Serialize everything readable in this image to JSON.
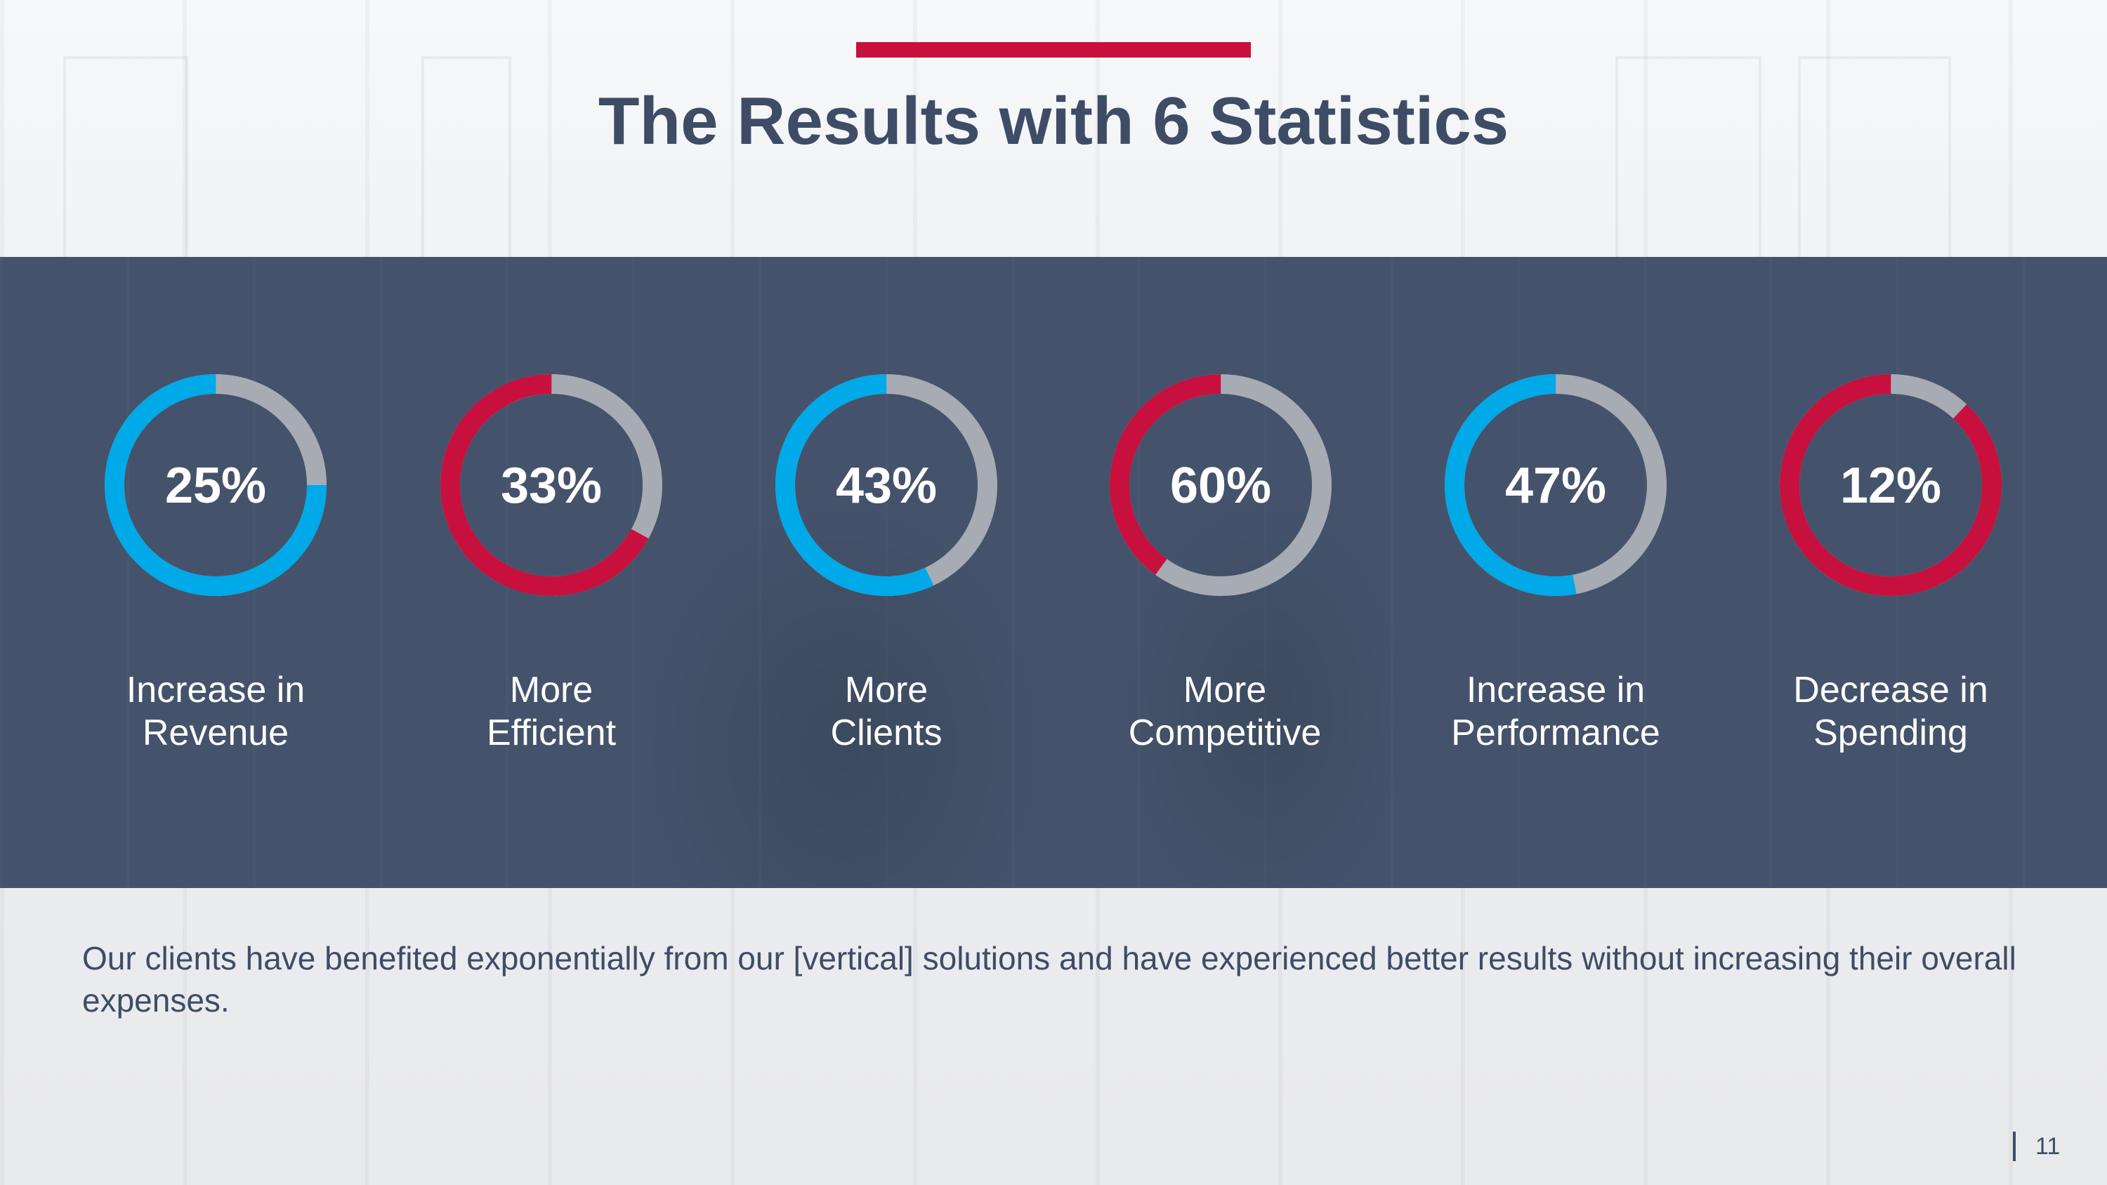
{
  "slide": {
    "title": "The Results with 6 Statistics",
    "description": "Our clients have benefited exponentially from our [vertical] solutions and have experienced better results without increasing their overall expenses.",
    "page_number": "11"
  },
  "colors": {
    "accent_red": "#c8103e",
    "accent_blue": "#00a9e8",
    "track_gray": "#a7abb3",
    "band": "#44536b",
    "title_text": "#3e4c66"
  },
  "chart_data": {
    "type": "donut",
    "series": [
      {
        "value": 25,
        "label": "25%",
        "caption_line1": "Increase in",
        "caption_line2": "Revenue",
        "color": "#00a9e8"
      },
      {
        "value": 33,
        "label": "33%",
        "caption_line1": "More",
        "caption_line2": "Efficient",
        "color": "#c8103e"
      },
      {
        "value": 43,
        "label": "43%",
        "caption_line1": "More",
        "caption_line2": "Clients",
        "color": "#00a9e8"
      },
      {
        "value": 60,
        "label": "60%",
        "caption_line1": "More",
        "caption_line2": "Competitive",
        "color": "#c8103e"
      },
      {
        "value": 47,
        "label": "47%",
        "caption_line1": "Increase in",
        "caption_line2": "Performance",
        "color": "#00a9e8"
      },
      {
        "value": 12,
        "label": "12%",
        "caption_line1": "Decrease in",
        "caption_line2": "Spending",
        "color": "#c8103e"
      }
    ]
  }
}
